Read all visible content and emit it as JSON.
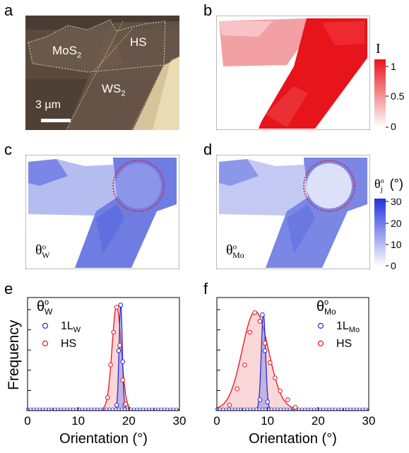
{
  "panel_labels": {
    "a": "a",
    "b": "b",
    "c": "c",
    "d": "d",
    "e": "e",
    "f": "f"
  },
  "micrograph": {
    "mos2_main": "MoS",
    "mos2_sub": "2",
    "hs": "HS",
    "ws2_main": "WS",
    "ws2_sub": "2",
    "scale_bar": "3 µm"
  },
  "colorbar_b": {
    "title": "I",
    "ticks": [
      "1",
      "0.5",
      "0"
    ],
    "colors": {
      "high": "#e8141b",
      "low": "#ffffff"
    }
  },
  "colorbar_cd": {
    "title_main": "θ",
    "title_sup": "o",
    "title_sub": "j",
    "title_unit": " (°)",
    "ticks": [
      "30",
      "20",
      "10",
      "0"
    ],
    "colors": {
      "high": "#2233dd",
      "low": "#ffffff"
    }
  },
  "map_c_label": {
    "main": "θ",
    "sup": "o",
    "sub": "W"
  },
  "map_d_label": {
    "main": "θ",
    "sup": "o",
    "sub": "Mo"
  },
  "common": {
    "ylabel": "Frequency",
    "xlabel": "Orientation (°)"
  },
  "chart_data": [
    {
      "type": "scatter",
      "panel": "e",
      "title": "θ^o_W",
      "xlabel": "Orientation (°)",
      "ylabel": "Frequency",
      "xlim": [
        0,
        30
      ],
      "xticks": [
        "0",
        "10",
        "20",
        "30"
      ],
      "legend_placement": "top-left",
      "series": [
        {
          "name": "1L",
          "name_sub": "W",
          "color": "#2b2bd6",
          "x": [
            17.6,
            18.0,
            18.4,
            18.8,
            19.2
          ],
          "y": [
            0.05,
            0.55,
            0.97,
            0.45,
            0.05
          ]
        },
        {
          "name": "HS",
          "color": "#e8141b",
          "x": [
            15.8,
            16.4,
            17.0,
            17.6,
            18.2,
            18.8,
            19.4
          ],
          "y": [
            0.12,
            0.42,
            0.72,
            0.95,
            0.6,
            0.28,
            0.06
          ]
        }
      ]
    },
    {
      "type": "scatter",
      "panel": "f",
      "title": "θ^o_Mo",
      "xlabel": "Orientation (°)",
      "ylabel": "Frequency",
      "xlim": [
        0,
        30
      ],
      "xticks": [
        "0",
        "10",
        "20",
        "30"
      ],
      "legend_placement": "top-right",
      "series": [
        {
          "name": "1L",
          "name_sub": "Mo",
          "color": "#2b2bd6",
          "x": [
            8.5,
            9.0,
            9.5,
            10.0
          ],
          "y": [
            0.1,
            0.88,
            0.55,
            0.08
          ]
        },
        {
          "name": "HS",
          "color": "#e8141b",
          "x": [
            2.5,
            4.0,
            5.5,
            6.5,
            7.5,
            8.5,
            9.5,
            10.5,
            11.5,
            12.5,
            14.0,
            15.5
          ],
          "y": [
            0.05,
            0.2,
            0.42,
            0.72,
            0.9,
            0.82,
            0.62,
            0.44,
            0.3,
            0.18,
            0.1,
            0.03
          ]
        }
      ]
    }
  ]
}
